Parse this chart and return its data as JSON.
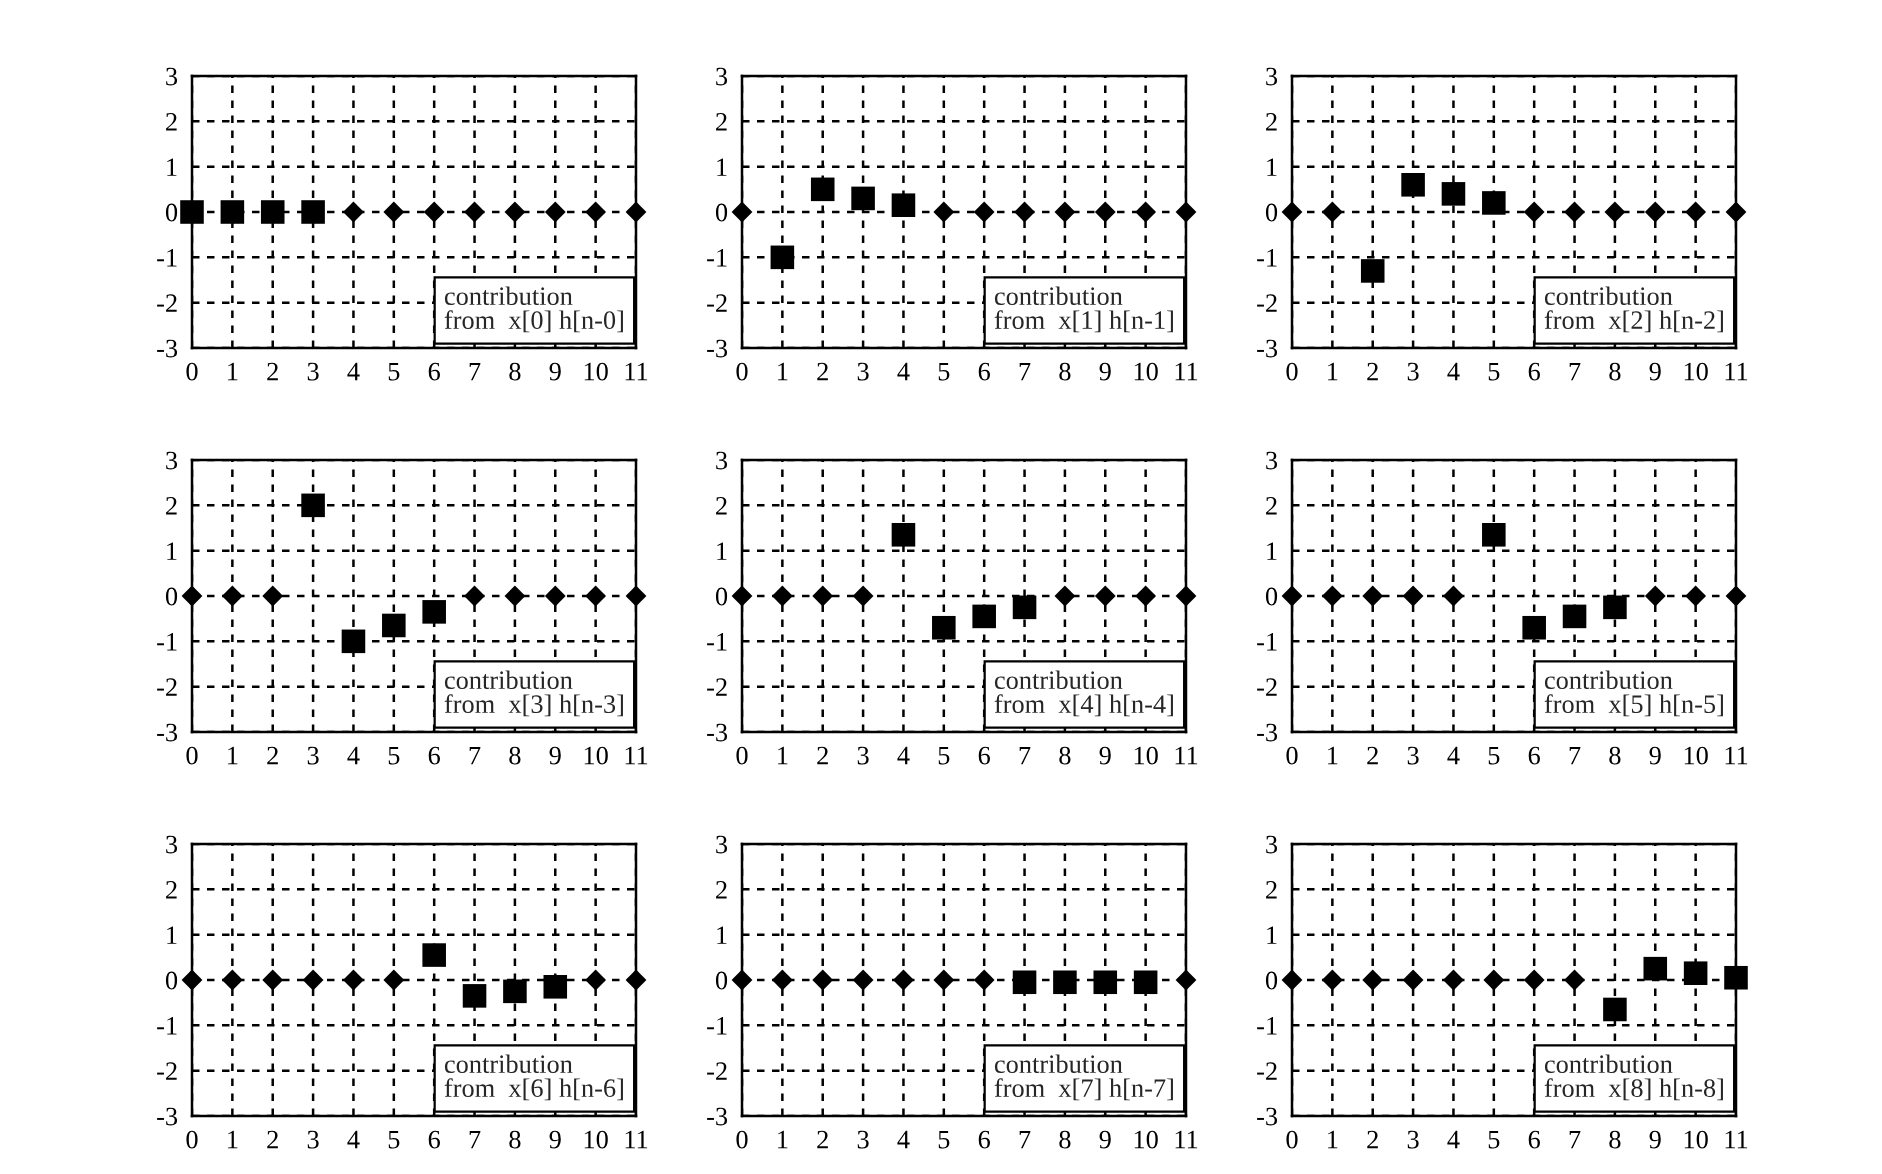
{
  "chart_data": [
    {
      "type": "scatter",
      "x": [
        0,
        1,
        2,
        3,
        4,
        5,
        6,
        7,
        8,
        9,
        10,
        11
      ],
      "xlim": [
        0,
        11
      ],
      "xticks": [
        0,
        1,
        2,
        3,
        4,
        5,
        6,
        7,
        8,
        9,
        10,
        11
      ],
      "ylim": [
        -3,
        3
      ],
      "yticks": [
        -3,
        -2,
        -1,
        0,
        1,
        2,
        3
      ],
      "grid": true,
      "annotations": [
        "contribution\nfrom  x[0] h[n-0]"
      ],
      "series": [
        {
          "color": "#000000",
          "marker": "square",
          "values": [
            0,
            0,
            0,
            0,
            null,
            null,
            null,
            null,
            null,
            null,
            null,
            null
          ]
        },
        {
          "color": "#000000",
          "marker": "diamond",
          "values": [
            null,
            null,
            null,
            null,
            0,
            0,
            0,
            0,
            0,
            0,
            0,
            0
          ]
        }
      ]
    },
    {
      "type": "scatter",
      "x": [
        0,
        1,
        2,
        3,
        4,
        5,
        6,
        7,
        8,
        9,
        10,
        11
      ],
      "xlim": [
        0,
        11
      ],
      "xticks": [
        0,
        1,
        2,
        3,
        4,
        5,
        6,
        7,
        8,
        9,
        10,
        11
      ],
      "ylim": [
        -3,
        3
      ],
      "yticks": [
        -3,
        -2,
        -1,
        0,
        1,
        2,
        3
      ],
      "grid": true,
      "annotations": [
        "contribution\nfrom  x[1] h[n-1]"
      ],
      "series": [
        {
          "color": "#000000",
          "marker": "square",
          "values": [
            null,
            -1,
            0.5,
            0.3,
            0.15,
            null,
            null,
            null,
            null,
            null,
            null,
            null
          ]
        },
        {
          "color": "#000000",
          "marker": "diamond",
          "values": [
            0,
            null,
            null,
            null,
            null,
            0,
            0,
            0,
            0,
            0,
            0,
            0
          ]
        }
      ]
    },
    {
      "type": "scatter",
      "x": [
        0,
        1,
        2,
        3,
        4,
        5,
        6,
        7,
        8,
        9,
        10,
        11
      ],
      "xlim": [
        0,
        11
      ],
      "xticks": [
        0,
        1,
        2,
        3,
        4,
        5,
        6,
        7,
        8,
        9,
        10,
        11
      ],
      "ylim": [
        -3,
        3
      ],
      "yticks": [
        -3,
        -2,
        -1,
        0,
        1,
        2,
        3
      ],
      "grid": true,
      "annotations": [
        "contribution\nfrom  x[2] h[n-2]"
      ],
      "series": [
        {
          "color": "#000000",
          "marker": "square",
          "values": [
            null,
            null,
            -1.3,
            0.6,
            0.4,
            0.2,
            null,
            null,
            null,
            null,
            null,
            null
          ]
        },
        {
          "color": "#000000",
          "marker": "diamond",
          "values": [
            0,
            0,
            null,
            null,
            null,
            null,
            0,
            0,
            0,
            0,
            0,
            0
          ]
        }
      ]
    },
    {
      "type": "scatter",
      "x": [
        0,
        1,
        2,
        3,
        4,
        5,
        6,
        7,
        8,
        9,
        10,
        11
      ],
      "xlim": [
        0,
        11
      ],
      "xticks": [
        0,
        1,
        2,
        3,
        4,
        5,
        6,
        7,
        8,
        9,
        10,
        11
      ],
      "ylim": [
        -3,
        3
      ],
      "yticks": [
        -3,
        -2,
        -1,
        0,
        1,
        2,
        3
      ],
      "grid": true,
      "annotations": [
        "contribution\nfrom  x[3] h[n-3]"
      ],
      "series": [
        {
          "color": "#000000",
          "marker": "square",
          "values": [
            null,
            null,
            null,
            2,
            -1,
            -0.65,
            -0.35,
            null,
            null,
            null,
            null,
            null
          ]
        },
        {
          "color": "#000000",
          "marker": "diamond",
          "values": [
            0,
            0,
            0,
            null,
            null,
            null,
            null,
            0,
            0,
            0,
            0,
            0
          ]
        }
      ]
    },
    {
      "type": "scatter",
      "x": [
        0,
        1,
        2,
        3,
        4,
        5,
        6,
        7,
        8,
        9,
        10,
        11
      ],
      "xlim": [
        0,
        11
      ],
      "xticks": [
        0,
        1,
        2,
        3,
        4,
        5,
        6,
        7,
        8,
        9,
        10,
        11
      ],
      "ylim": [
        -3,
        3
      ],
      "yticks": [
        -3,
        -2,
        -1,
        0,
        1,
        2,
        3
      ],
      "grid": true,
      "annotations": [
        "contribution\nfrom  x[4] h[n-4]"
      ],
      "series": [
        {
          "color": "#000000",
          "marker": "square",
          "values": [
            null,
            null,
            null,
            null,
            1.35,
            -0.7,
            -0.45,
            -0.25,
            null,
            null,
            null,
            null
          ]
        },
        {
          "color": "#000000",
          "marker": "diamond",
          "values": [
            0,
            0,
            0,
            0,
            null,
            null,
            null,
            null,
            0,
            0,
            0,
            0
          ]
        }
      ]
    },
    {
      "type": "scatter",
      "x": [
        0,
        1,
        2,
        3,
        4,
        5,
        6,
        7,
        8,
        9,
        10,
        11
      ],
      "xlim": [
        0,
        11
      ],
      "xticks": [
        0,
        1,
        2,
        3,
        4,
        5,
        6,
        7,
        8,
        9,
        10,
        11
      ],
      "ylim": [
        -3,
        3
      ],
      "yticks": [
        -3,
        -2,
        -1,
        0,
        1,
        2,
        3
      ],
      "grid": true,
      "annotations": [
        "contribution\nfrom  x[5] h[n-5]"
      ],
      "series": [
        {
          "color": "#000000",
          "marker": "square",
          "values": [
            null,
            null,
            null,
            null,
            null,
            1.35,
            -0.7,
            -0.45,
            -0.25,
            null,
            null,
            null
          ]
        },
        {
          "color": "#000000",
          "marker": "diamond",
          "values": [
            0,
            0,
            0,
            0,
            0,
            null,
            null,
            null,
            null,
            0,
            0,
            0
          ]
        }
      ]
    },
    {
      "type": "scatter",
      "x": [
        0,
        1,
        2,
        3,
        4,
        5,
        6,
        7,
        8,
        9,
        10,
        11
      ],
      "xlim": [
        0,
        11
      ],
      "xticks": [
        0,
        1,
        2,
        3,
        4,
        5,
        6,
        7,
        8,
        9,
        10,
        11
      ],
      "ylim": [
        -3,
        3
      ],
      "yticks": [
        -3,
        -2,
        -1,
        0,
        1,
        2,
        3
      ],
      "grid": true,
      "annotations": [
        "contribution\nfrom  x[6] h[n-6]"
      ],
      "series": [
        {
          "color": "#000000",
          "marker": "square",
          "values": [
            null,
            null,
            null,
            null,
            null,
            null,
            0.55,
            -0.35,
            -0.25,
            -0.15,
            null,
            null
          ]
        },
        {
          "color": "#000000",
          "marker": "diamond",
          "values": [
            0,
            0,
            0,
            0,
            0,
            0,
            null,
            null,
            null,
            null,
            0,
            0
          ]
        }
      ]
    },
    {
      "type": "scatter",
      "x": [
        0,
        1,
        2,
        3,
        4,
        5,
        6,
        7,
        8,
        9,
        10,
        11
      ],
      "xlim": [
        0,
        11
      ],
      "xticks": [
        0,
        1,
        2,
        3,
        4,
        5,
        6,
        7,
        8,
        9,
        10,
        11
      ],
      "ylim": [
        -3,
        3
      ],
      "yticks": [
        -3,
        -2,
        -1,
        0,
        1,
        2,
        3
      ],
      "grid": true,
      "annotations": [
        "contribution\nfrom  x[7] h[n-7]"
      ],
      "series": [
        {
          "color": "#000000",
          "marker": "square",
          "values": [
            null,
            null,
            null,
            null,
            null,
            null,
            null,
            -0.05,
            -0.05,
            -0.05,
            -0.05,
            null
          ]
        },
        {
          "color": "#000000",
          "marker": "diamond",
          "values": [
            0,
            0,
            0,
            0,
            0,
            0,
            0,
            null,
            null,
            null,
            null,
            0
          ]
        }
      ]
    },
    {
      "type": "scatter",
      "x": [
        0,
        1,
        2,
        3,
        4,
        5,
        6,
        7,
        8,
        9,
        10,
        11
      ],
      "xlim": [
        0,
        11
      ],
      "xticks": [
        0,
        1,
        2,
        3,
        4,
        5,
        6,
        7,
        8,
        9,
        10,
        11
      ],
      "ylim": [
        -3,
        3
      ],
      "yticks": [
        -3,
        -2,
        -1,
        0,
        1,
        2,
        3
      ],
      "grid": true,
      "annotations": [
        "contribution\nfrom  x[8] h[n-8]"
      ],
      "series": [
        {
          "color": "#000000",
          "marker": "square",
          "values": [
            null,
            null,
            null,
            null,
            null,
            null,
            null,
            null,
            -0.65,
            0.25,
            0.15,
            0.05
          ]
        },
        {
          "color": "#000000",
          "marker": "diamond",
          "values": [
            0,
            0,
            0,
            0,
            0,
            0,
            0,
            0,
            null,
            null,
            null,
            null
          ]
        }
      ]
    }
  ]
}
